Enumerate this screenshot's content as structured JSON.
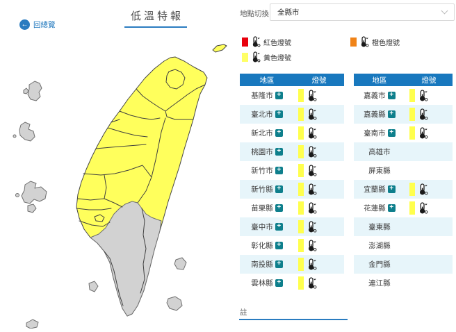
{
  "header": {
    "back_label": "回總覽",
    "title": "低溫特報",
    "location_label": "地點切換",
    "location_value": "全縣市"
  },
  "legend": {
    "items": [
      {
        "id": "red",
        "label": "紅色燈號",
        "color": "#e8000d"
      },
      {
        "id": "orange",
        "label": "橙色燈號",
        "color": "#f08318"
      },
      {
        "id": "yellow",
        "label": "黃色燈號",
        "color": "#ffff66"
      }
    ]
  },
  "tables": {
    "columns": [
      "地區",
      "燈號"
    ],
    "left": [
      {
        "region": "基隆市",
        "expandable": true,
        "signal": "yellow"
      },
      {
        "region": "臺北市",
        "expandable": true,
        "signal": "yellow"
      },
      {
        "region": "新北市",
        "expandable": true,
        "signal": "yellow"
      },
      {
        "region": "桃園市",
        "expandable": true,
        "signal": "yellow"
      },
      {
        "region": "新竹市",
        "expandable": true,
        "signal": "yellow"
      },
      {
        "region": "新竹縣",
        "expandable": true,
        "signal": "yellow"
      },
      {
        "region": "苗栗縣",
        "expandable": true,
        "signal": "yellow"
      },
      {
        "region": "臺中市",
        "expandable": true,
        "signal": "yellow"
      },
      {
        "region": "彰化縣",
        "expandable": true,
        "signal": "yellow"
      },
      {
        "region": "南投縣",
        "expandable": true,
        "signal": "yellow"
      },
      {
        "region": "雲林縣",
        "expandable": true,
        "signal": "yellow"
      }
    ],
    "right": [
      {
        "region": "嘉義市",
        "expandable": true,
        "signal": "yellow"
      },
      {
        "region": "嘉義縣",
        "expandable": true,
        "signal": "yellow"
      },
      {
        "region": "臺南市",
        "expandable": true,
        "signal": "yellow"
      },
      {
        "region": "高雄市",
        "expandable": false,
        "signal": "none"
      },
      {
        "region": "屏東縣",
        "expandable": false,
        "signal": "none"
      },
      {
        "region": "宜蘭縣",
        "expandable": true,
        "signal": "yellow"
      },
      {
        "region": "花蓮縣",
        "expandable": true,
        "signal": "yellow"
      },
      {
        "region": "臺東縣",
        "expandable": false,
        "signal": "none"
      },
      {
        "region": "澎湖縣",
        "expandable": false,
        "signal": "none"
      },
      {
        "region": "金門縣",
        "expandable": false,
        "signal": "none"
      },
      {
        "region": "連江縣",
        "expandable": false,
        "signal": "none"
      }
    ]
  },
  "note": {
    "label": "註"
  },
  "map": {
    "warning_color": "#ffff5c",
    "no_warning_color": "#d2d2d2"
  },
  "colors": {
    "blue_header": "#1878be",
    "accent": "#2a7cc0",
    "link": "#1b75bc",
    "teal": "#0e7f8c",
    "alt_row": "#e7f5fa",
    "signal_yellow": "#ffff4d"
  }
}
